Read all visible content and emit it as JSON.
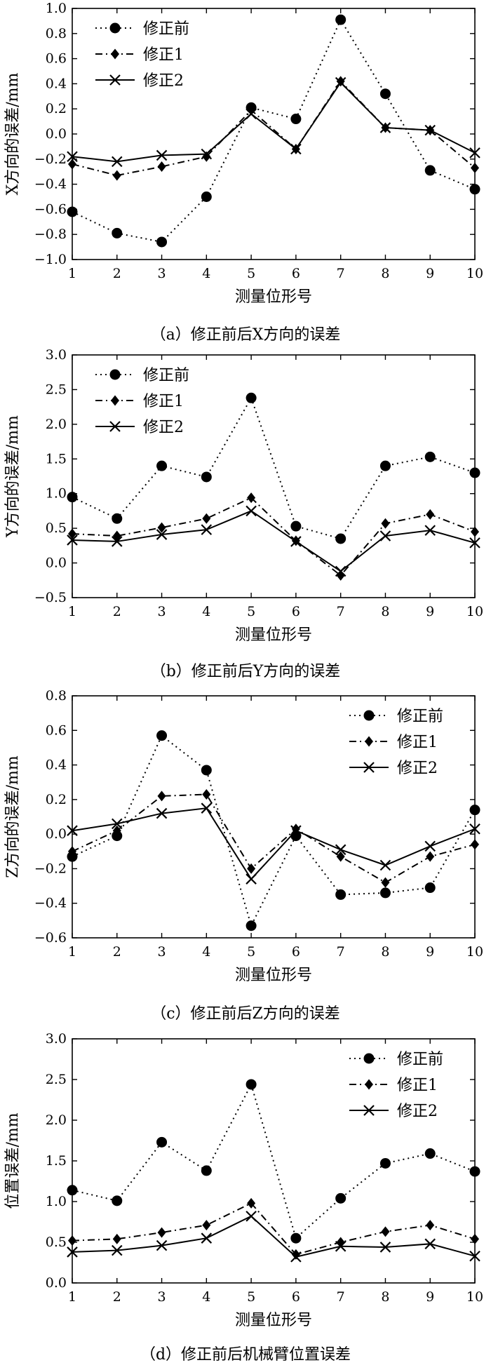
{
  "legend_labels": [
    "修正前",
    "修正1",
    "修正2"
  ],
  "chart_data": [
    {
      "type": "line",
      "caption": "（a）修正前后X方向的误差",
      "xlabel": "测量位形号",
      "ylabel": "X方向的误差/mm",
      "x": [
        1,
        2,
        3,
        4,
        5,
        6,
        7,
        8,
        9,
        10
      ],
      "ylim": [
        -1.0,
        1.0
      ],
      "yticks": [
        "−1.0",
        "−0.8",
        "−0.6",
        "−0.4",
        "−0.2",
        "0.0",
        "0.2",
        "0.4",
        "0.6",
        "0.8",
        "1.0"
      ],
      "legend_position": "top-left",
      "series": [
        {
          "name": "修正前",
          "values": [
            -0.62,
            -0.79,
            -0.86,
            -0.5,
            0.21,
            0.12,
            0.91,
            0.32,
            -0.29,
            -0.44
          ]
        },
        {
          "name": "修正1",
          "values": [
            -0.24,
            -0.33,
            -0.26,
            -0.18,
            0.19,
            -0.12,
            0.42,
            0.05,
            0.03,
            -0.27
          ]
        },
        {
          "name": "修正2",
          "values": [
            -0.18,
            -0.22,
            -0.17,
            -0.16,
            0.16,
            -0.12,
            0.41,
            0.05,
            0.03,
            -0.15
          ]
        }
      ]
    },
    {
      "type": "line",
      "caption": "（b）修正前后Y方向的误差",
      "xlabel": "测量位形号",
      "ylabel": "Y方向的误差/mm",
      "x": [
        1,
        2,
        3,
        4,
        5,
        6,
        7,
        8,
        9,
        10
      ],
      "ylim": [
        -0.5,
        3.0
      ],
      "yticks": [
        "−0.5",
        "0.0",
        "0.5",
        "1.0",
        "1.5",
        "2.0",
        "2.5",
        "3.0"
      ],
      "legend_position": "top-left",
      "series": [
        {
          "name": "修正前",
          "values": [
            0.95,
            0.64,
            1.4,
            1.24,
            2.38,
            0.53,
            0.35,
            1.4,
            1.53,
            1.3
          ]
        },
        {
          "name": "修正1",
          "values": [
            0.42,
            0.39,
            0.51,
            0.64,
            0.94,
            0.32,
            -0.18,
            0.57,
            0.7,
            0.45
          ]
        },
        {
          "name": "修正2",
          "values": [
            0.33,
            0.31,
            0.41,
            0.48,
            0.75,
            0.31,
            -0.12,
            0.39,
            0.47,
            0.29
          ]
        }
      ]
    },
    {
      "type": "line",
      "caption": "（c）修正前后Z方向的误差",
      "xlabel": "测量位形号",
      "ylabel": "Z方向的误差/mm",
      "x": [
        1,
        2,
        3,
        4,
        5,
        6,
        7,
        8,
        9,
        10
      ],
      "ylim": [
        -0.6,
        0.8
      ],
      "yticks": [
        "−0.6",
        "−0.4",
        "−0.2",
        "0.0",
        "0.2",
        "0.4",
        "0.6",
        "0.8"
      ],
      "legend_position": "top-right",
      "series": [
        {
          "name": "修正前",
          "values": [
            -0.13,
            -0.01,
            0.57,
            0.37,
            -0.53,
            -0.01,
            -0.35,
            -0.34,
            -0.31,
            0.14
          ]
        },
        {
          "name": "修正1",
          "values": [
            -0.1,
            0.02,
            0.22,
            0.23,
            -0.2,
            0.03,
            -0.13,
            -0.28,
            -0.13,
            -0.06
          ]
        },
        {
          "name": "修正2",
          "values": [
            0.02,
            0.06,
            0.12,
            0.15,
            -0.26,
            0.02,
            -0.09,
            -0.18,
            -0.07,
            0.03
          ]
        }
      ]
    },
    {
      "type": "line",
      "caption": "（d）修正前后机械臂位置误差",
      "xlabel": "测量位形号",
      "ylabel": "位置误差/mm",
      "x": [
        1,
        2,
        3,
        4,
        5,
        6,
        7,
        8,
        9,
        10
      ],
      "ylim": [
        0.0,
        3.0
      ],
      "yticks": [
        "0.0",
        "0.5",
        "1.0",
        "1.5",
        "2.0",
        "2.5",
        "3.0"
      ],
      "legend_position": "top-right",
      "series": [
        {
          "name": "修正前",
          "values": [
            1.14,
            1.01,
            1.73,
            1.38,
            2.44,
            0.55,
            1.04,
            1.47,
            1.59,
            1.37
          ]
        },
        {
          "name": "修正1",
          "values": [
            0.52,
            0.54,
            0.62,
            0.71,
            0.98,
            0.35,
            0.5,
            0.63,
            0.71,
            0.54
          ]
        },
        {
          "name": "修正2",
          "values": [
            0.38,
            0.4,
            0.46,
            0.55,
            0.82,
            0.32,
            0.45,
            0.44,
            0.48,
            0.33
          ]
        }
      ]
    }
  ]
}
